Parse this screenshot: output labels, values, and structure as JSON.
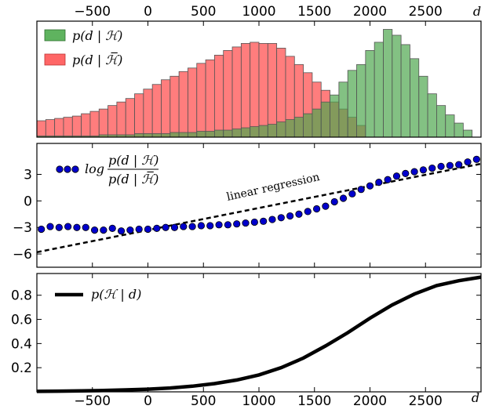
{
  "chart_data": [
    {
      "type": "bar",
      "x_label": "d",
      "xlim": [
        -1000,
        3000
      ],
      "x_ticks": [
        -500,
        0,
        500,
        1000,
        1500,
        2000,
        2500
      ],
      "x_tick_labels": [
        "−500",
        "0",
        "500",
        "1000",
        "1500",
        "2000",
        "2500"
      ],
      "legend": [
        {
          "label": "p(d | ℋ)",
          "color": "#5fb35f"
        },
        {
          "label": "p(d | ℋ̅)",
          "color": "#ff6666"
        }
      ],
      "bin_width": 80,
      "series": [
        {
          "name": "p(d | ℋ̅)",
          "color": "#ff6666",
          "bin_starts": [
            -1000,
            -920,
            -840,
            -760,
            -680,
            -600,
            -520,
            -440,
            -360,
            -280,
            -200,
            -120,
            -40,
            40,
            120,
            200,
            280,
            360,
            440,
            520,
            600,
            680,
            760,
            840,
            920,
            1000,
            1080,
            1160,
            1240,
            1320,
            1400,
            1480,
            1560,
            1640,
            1720,
            1800,
            1880
          ],
          "values": [
            14,
            15,
            16,
            17,
            18,
            20,
            22,
            24,
            27,
            30,
            33,
            37,
            41,
            45,
            49,
            52,
            56,
            59,
            63,
            66,
            70,
            74,
            77,
            80,
            81,
            80,
            80,
            76,
            69,
            62,
            55,
            47,
            40,
            30,
            24,
            17,
            10
          ]
        },
        {
          "name": "p(d | ℋ)",
          "color": "#5fb35f",
          "bin_starts": [
            -1000,
            -920,
            -840,
            -760,
            -680,
            -600,
            -520,
            -440,
            -360,
            -280,
            -200,
            -120,
            -40,
            40,
            120,
            200,
            280,
            360,
            440,
            520,
            600,
            680,
            760,
            840,
            920,
            1000,
            1080,
            1160,
            1240,
            1320,
            1400,
            1480,
            1560,
            1640,
            1720,
            1800,
            1880,
            1960,
            2040,
            2120,
            2200,
            2280,
            2360,
            2440,
            2520,
            2600,
            2680,
            2760,
            2840,
            2920
          ],
          "values": [
            1,
            1,
            1,
            1,
            1,
            1,
            1,
            2,
            2,
            2,
            2,
            3,
            3,
            3,
            3,
            4,
            4,
            4,
            5,
            5,
            6,
            6,
            7,
            8,
            9,
            10,
            11,
            13,
            15,
            17,
            20,
            24,
            30,
            36,
            47,
            57,
            62,
            74,
            81,
            92,
            87,
            79,
            67,
            52,
            37,
            27,
            19,
            12,
            6,
            0
          ]
        }
      ]
    },
    {
      "type": "scatter",
      "xlim": [
        -1000,
        3000
      ],
      "ylim": [
        -7.5,
        6.5
      ],
      "y_ticks": [
        -6,
        -3,
        0,
        3
      ],
      "y_tick_labels": [
        "−6",
        "−3",
        "0",
        "3"
      ],
      "legend": [
        {
          "label": "log p(d | ℋ) / p(d | ℋ̅)",
          "marker": "circle",
          "color": "#0000cc"
        }
      ],
      "annotation": "linear regression",
      "series": [
        {
          "name": "log p(d | ℋ) / p(d | ℋ̅)",
          "x": [
            -1000,
            -920,
            -840,
            -760,
            -680,
            -600,
            -520,
            -440,
            -360,
            -280,
            -200,
            -120,
            -40,
            40,
            120,
            200,
            280,
            360,
            440,
            520,
            600,
            680,
            760,
            840,
            920,
            1000,
            1080,
            1160,
            1240,
            1320,
            1400,
            1480,
            1560,
            1640,
            1720,
            1800,
            1880,
            1960,
            2040,
            2120,
            2200,
            2280,
            2360,
            2440,
            2520,
            2600,
            2680,
            2760,
            2840,
            2920
          ],
          "y": [
            -3.2,
            -2.9,
            -3.0,
            -2.9,
            -3.0,
            -3.0,
            -3.3,
            -3.3,
            -3.1,
            -3.4,
            -3.3,
            -3.2,
            -3.2,
            -3.1,
            -3.0,
            -3.0,
            -2.9,
            -2.9,
            -2.8,
            -2.8,
            -2.7,
            -2.7,
            -2.6,
            -2.5,
            -2.4,
            -2.3,
            -2.1,
            -1.9,
            -1.7,
            -1.5,
            -1.2,
            -0.9,
            -0.6,
            -0.1,
            0.3,
            0.8,
            1.3,
            1.7,
            2.1,
            2.4,
            2.8,
            3.1,
            3.3,
            3.5,
            3.7,
            3.9,
            4.0,
            4.1,
            4.4,
            4.7
          ]
        },
        {
          "name": "linear regression",
          "style": "dashed",
          "x": [
            -1000,
            3000
          ],
          "y": [
            -5.8,
            4.2
          ]
        }
      ]
    },
    {
      "type": "line",
      "xlim": [
        -1000,
        3000
      ],
      "ylim": [
        0,
        0.98
      ],
      "y_ticks": [
        0.2,
        0.4,
        0.6,
        0.8
      ],
      "y_tick_labels": [
        "0.2",
        "0.4",
        "0.6",
        "0.8"
      ],
      "x_ticks": [
        -500,
        0,
        500,
        1000,
        1500,
        2000,
        2500
      ],
      "x_tick_labels": [
        "−500",
        "0",
        "500",
        "1000",
        "1500",
        "2000",
        "2500"
      ],
      "x_label": "d",
      "legend": [
        {
          "label": "p(ℋ | d)",
          "color": "#000000"
        }
      ],
      "series": [
        {
          "name": "p(ℋ | d)",
          "x": [
            -1000,
            -800,
            -600,
            -400,
            -200,
            0,
            200,
            400,
            600,
            800,
            1000,
            1200,
            1400,
            1600,
            1800,
            2000,
            2200,
            2400,
            2600,
            2800,
            3000
          ],
          "y": [
            0.004,
            0.006,
            0.008,
            0.011,
            0.016,
            0.022,
            0.032,
            0.047,
            0.068,
            0.098,
            0.14,
            0.2,
            0.28,
            0.38,
            0.49,
            0.61,
            0.72,
            0.81,
            0.88,
            0.92,
            0.95
          ]
        }
      ]
    }
  ]
}
